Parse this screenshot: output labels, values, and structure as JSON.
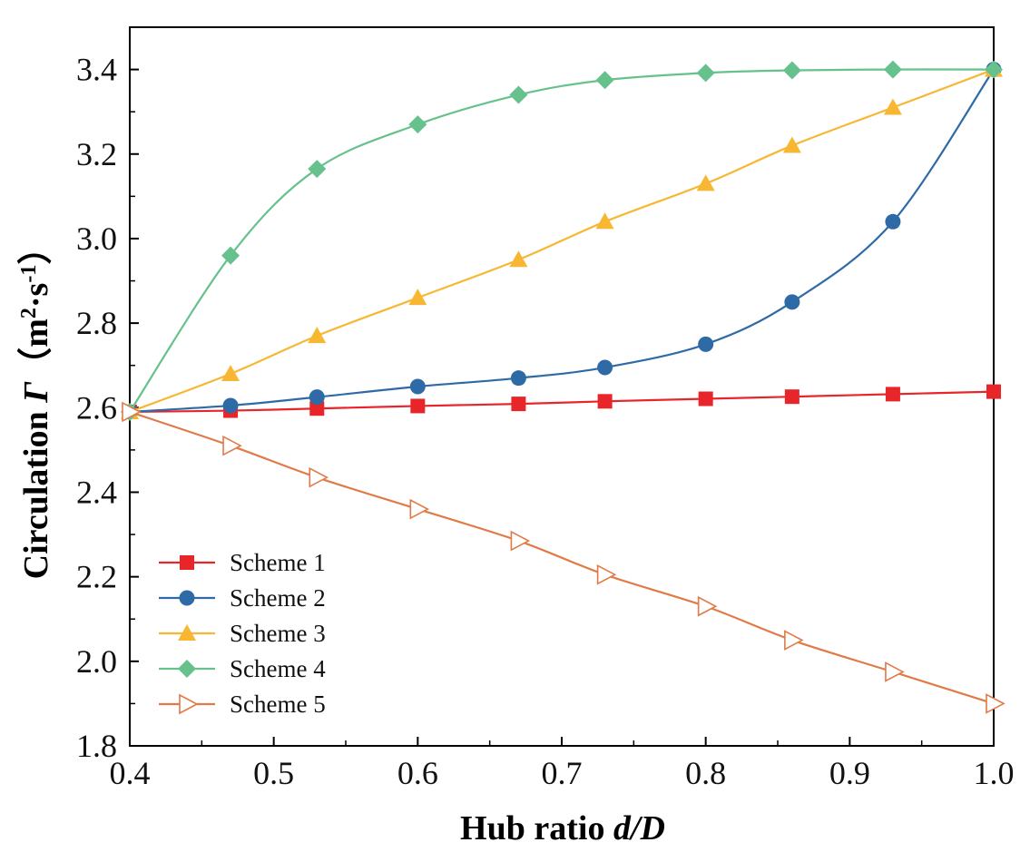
{
  "chart_data": {
    "type": "line",
    "title": "",
    "xlabel": "Hub ratio",
    "xlabel_var": "d/D",
    "ylabel": "Circulation",
    "ylabel_symbol": "Γ",
    "ylabel_unit_open": "（m",
    "ylabel_unit_exp1": "2",
    "ylabel_unit_mid": "·s",
    "ylabel_unit_exp2": "-1",
    "ylabel_unit_close": "）",
    "xlim": [
      0.4,
      1.0
    ],
    "ylim": [
      1.8,
      3.5
    ],
    "xticks": [
      0.4,
      0.5,
      0.6,
      0.7,
      0.8,
      0.9,
      1.0
    ],
    "xtick_labels": [
      "0.4",
      "0.5",
      "0.6",
      "0.7",
      "0.8",
      "0.9",
      "1.0"
    ],
    "yticks": [
      1.8,
      2.0,
      2.2,
      2.4,
      2.6,
      2.8,
      3.0,
      3.2,
      3.4
    ],
    "ytick_labels": [
      "1.8",
      "2.0",
      "2.2",
      "2.4",
      "2.6",
      "2.8",
      "3.0",
      "3.2",
      "3.4"
    ],
    "x": [
      0.4,
      0.47,
      0.53,
      0.6,
      0.67,
      0.73,
      0.8,
      0.86,
      0.93,
      1.0
    ],
    "legend_position": "bottom-left",
    "grid": false,
    "series": [
      {
        "name": "Scheme 1",
        "color": "#e8262a",
        "marker": "square",
        "values": [
          2.59,
          2.593,
          2.598,
          2.604,
          2.609,
          2.615,
          2.621,
          2.626,
          2.632,
          2.638
        ]
      },
      {
        "name": "Scheme 2",
        "color": "#2e6aa5",
        "marker": "circle",
        "values": [
          2.59,
          2.605,
          2.625,
          2.65,
          2.67,
          2.695,
          2.75,
          2.85,
          3.04,
          3.4
        ]
      },
      {
        "name": "Scheme 3",
        "color": "#f7b733",
        "marker": "triangle",
        "values": [
          2.59,
          2.68,
          2.77,
          2.86,
          2.95,
          3.04,
          3.13,
          3.22,
          3.31,
          3.4
        ]
      },
      {
        "name": "Scheme 4",
        "color": "#66c18c",
        "marker": "diamond",
        "values": [
          2.59,
          2.96,
          3.165,
          3.27,
          3.34,
          3.375,
          3.392,
          3.398,
          3.4,
          3.4
        ]
      },
      {
        "name": "Scheme 5",
        "color": "#e07b47",
        "marker": "triangle-right-open",
        "values": [
          2.59,
          2.51,
          2.435,
          2.36,
          2.285,
          2.205,
          2.13,
          2.05,
          1.975,
          1.9
        ]
      }
    ]
  }
}
